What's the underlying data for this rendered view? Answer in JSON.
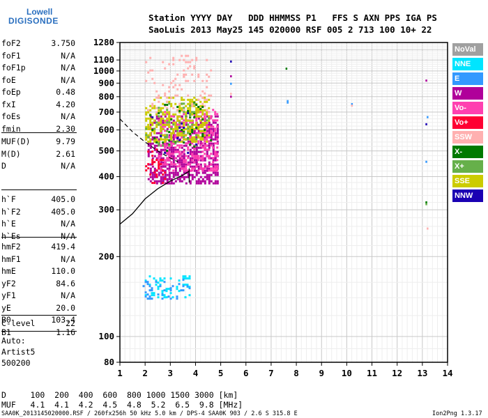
{
  "logo": {
    "line1": "Lowell",
    "line2": "DIGISONDE"
  },
  "header": {
    "row1": "Station YYYY DAY   DDD HHMMSS P1   FFS S AXN PPS IGA PS",
    "row2": "SaoLuis 2013 May25 145 020000 RSF 005 2 713 100 10+ 22"
  },
  "params_group1": [
    {
      "name": "foF2",
      "value": "3.750"
    },
    {
      "name": "foF1",
      "value": "N/A"
    },
    {
      "name": "foF1p",
      "value": "N/A"
    },
    {
      "name": "foE",
      "value": "N/A"
    },
    {
      "name": "foEp",
      "value": "0.48"
    },
    {
      "name": "fxI",
      "value": "4.20"
    },
    {
      "name": "foEs",
      "value": "N/A"
    },
    {
      "name": "fmin",
      "value": "2.30"
    }
  ],
  "params_group2": [
    {
      "name": "MUF(D)",
      "value": "9.79"
    },
    {
      "name": "M(D)",
      "value": "2.61"
    },
    {
      "name": "D",
      "value": "N/A"
    }
  ],
  "params_group3": [
    {
      "name": "h`F",
      "value": "405.0"
    },
    {
      "name": "h`F2",
      "value": "405.0"
    },
    {
      "name": "h`E",
      "value": "N/A"
    },
    {
      "name": "h`Es",
      "value": "N/A"
    }
  ],
  "params_group4": [
    {
      "name": "hmF2",
      "value": "419.4"
    },
    {
      "name": "hmF1",
      "value": "N/A"
    },
    {
      "name": "hmE",
      "value": "110.0"
    },
    {
      "name": "yF2",
      "value": "84.6"
    },
    {
      "name": "yF1",
      "value": "N/A"
    },
    {
      "name": "yE",
      "value": "20.0"
    },
    {
      "name": "B0",
      "value": "103.4"
    },
    {
      "name": "B1",
      "value": "1.16"
    }
  ],
  "params_group5": [
    {
      "name": "C-level",
      "value": "22"
    }
  ],
  "auto": {
    "label": "Auto:",
    "name": "Artist5",
    "code": "500200"
  },
  "legend": [
    {
      "label": "NoVal",
      "color": "#a0a0a0",
      "text_color": "#ffffff"
    },
    {
      "label": "NNE",
      "color": "#00e5ff",
      "text_color": "#ffffff"
    },
    {
      "label": "E",
      "color": "#3399ff",
      "text_color": "#ffffff"
    },
    {
      "label": "W",
      "color": "#b0009a",
      "text_color": "#ffffff"
    },
    {
      "label": "Vo-",
      "color": "#ff40b0",
      "text_color": "#ffffff"
    },
    {
      "label": "Vo+",
      "color": "#ff0033",
      "text_color": "#ffffff"
    },
    {
      "label": "SSW",
      "color": "#ffb0b0",
      "text_color": "#ffffff"
    },
    {
      "label": "X-",
      "color": "#007a00",
      "text_color": "#ffffff"
    },
    {
      "label": "X+",
      "color": "#66b04a",
      "text_color": "#ffffff"
    },
    {
      "label": "SSE",
      "color": "#cccc00",
      "text_color": "#ffffff"
    },
    {
      "label": "NNW",
      "color": "#1a00b3",
      "text_color": "#ffffff"
    }
  ],
  "footer": {
    "d_row": "D     100  200  400  600  800 1000 1500 3000 [km]",
    "muf_row": "MUF   4.1  4.1  4.2  4.5  4.8  5.2  6.5  9.8 [MHz]",
    "info": "SAA0K_2013145020000.RSF / 260fx256h 50 kHz 5.0 km / DPS-4 SAA0K 903 / 2.6 S 315.8 E",
    "version": "Ion2Png 1.3.17"
  },
  "chart_data": {
    "type": "scatter",
    "title": "",
    "xlabel": "",
    "ylabel": "",
    "xlim": [
      1,
      14
    ],
    "ylim": [
      80,
      1280
    ],
    "y_scale": "log",
    "grid": true,
    "x_ticks": [
      "1",
      "2",
      "3",
      "4",
      "5",
      "6",
      "7",
      "8",
      "9",
      "10",
      "11",
      "12",
      "13",
      "14"
    ],
    "y_ticks": [
      {
        "value": 80,
        "label": "80"
      },
      {
        "value": 100,
        "label": "100"
      },
      {
        "value": 200,
        "label": "200"
      },
      {
        "value": 300,
        "label": "300"
      },
      {
        "value": 400,
        "label": "400"
      },
      {
        "value": 500,
        "label": "500"
      },
      {
        "value": 600,
        "label": "600"
      },
      {
        "value": 700,
        "label": "700"
      },
      {
        "value": 800,
        "label": "800"
      },
      {
        "value": 900,
        "label": "900"
      },
      {
        "value": 1000,
        "label": "1000"
      },
      {
        "value": 1100,
        "label": "1100"
      },
      {
        "value": 1280,
        "label": "1280"
      }
    ],
    "echo_clusters": [
      {
        "series": "W",
        "color": "#b0009a",
        "f": [
          2.1,
          4.9
        ],
        "h": [
          380,
          680
        ],
        "density": 0.55
      },
      {
        "series": "Vo-",
        "color": "#ff40b0",
        "f": [
          2.5,
          4.9
        ],
        "h": [
          420,
          720
        ],
        "density": 0.35
      },
      {
        "series": "SSE",
        "color": "#cccc00",
        "f": [
          2.0,
          4.5
        ],
        "h": [
          540,
          800
        ],
        "density": 0.45
      },
      {
        "series": "SSW",
        "color": "#ffb0b0",
        "f": [
          2.0,
          4.6
        ],
        "h": [
          700,
          1150
        ],
        "density": 0.12
      },
      {
        "series": "Vo+",
        "color": "#ff0033",
        "f": [
          2.0,
          2.8
        ],
        "h": [
          380,
          520
        ],
        "density": 0.2
      },
      {
        "series": "X-",
        "color": "#007a00",
        "f": [
          2.0,
          4.6
        ],
        "h": [
          500,
          780
        ],
        "density": 0.06
      },
      {
        "series": "X+",
        "color": "#66b04a",
        "f": [
          2.0,
          4.5
        ],
        "h": [
          520,
          760
        ],
        "density": 0.08
      },
      {
        "series": "NNW",
        "color": "#1a00b3",
        "f": [
          2.0,
          4.0
        ],
        "h": [
          450,
          700
        ],
        "density": 0.02
      },
      {
        "series": "NNE",
        "color": "#00e5ff",
        "f": [
          1.9,
          3.8
        ],
        "h": [
          140,
          170
        ],
        "density": 0.25
      },
      {
        "series": "E",
        "color": "#3399ff",
        "f": [
          1.9,
          3.8
        ],
        "h": [
          140,
          165
        ],
        "density": 0.2
      }
    ],
    "isolated_echoes": [
      {
        "series": "X-",
        "f": 7.6,
        "h": 1020
      },
      {
        "series": "E",
        "f": 7.65,
        "h": 770
      },
      {
        "series": "E",
        "f": 7.65,
        "h": 760
      },
      {
        "series": "E",
        "f": 10.2,
        "h": 750
      },
      {
        "series": "SSW",
        "f": 10.2,
        "h": 740
      },
      {
        "series": "W",
        "f": 13.15,
        "h": 920
      },
      {
        "series": "E",
        "f": 13.2,
        "h": 670
      },
      {
        "series": "NNW",
        "f": 13.15,
        "h": 630
      },
      {
        "series": "E",
        "f": 13.15,
        "h": 455
      },
      {
        "series": "X-",
        "f": 13.15,
        "h": 320
      },
      {
        "series": "X+",
        "f": 13.15,
        "h": 315
      },
      {
        "series": "SSW",
        "f": 13.2,
        "h": 255
      },
      {
        "series": "W",
        "f": 5.4,
        "h": 955
      },
      {
        "series": "NNW",
        "f": 5.4,
        "h": 1085
      },
      {
        "series": "SSW",
        "f": 5.4,
        "h": 820
      },
      {
        "series": "W",
        "f": 5.4,
        "h": 800
      },
      {
        "series": "E",
        "f": 5.4,
        "h": 895
      }
    ],
    "trace_solid": {
      "f": [
        1.0,
        1.5,
        2.0,
        2.5,
        3.0,
        3.5,
        3.75
      ],
      "h": [
        265,
        290,
        330,
        360,
        385,
        405,
        420
      ]
    },
    "trace_solid_vertical": {
      "f": [
        3.75,
        3.75
      ],
      "h": [
        380,
        430
      ]
    },
    "trace_dashed": {
      "f": [
        1.0,
        1.5,
        2.0,
        2.5,
        3.0,
        3.3
      ],
      "h": [
        660,
        590,
        540,
        500,
        470,
        455
      ]
    }
  }
}
